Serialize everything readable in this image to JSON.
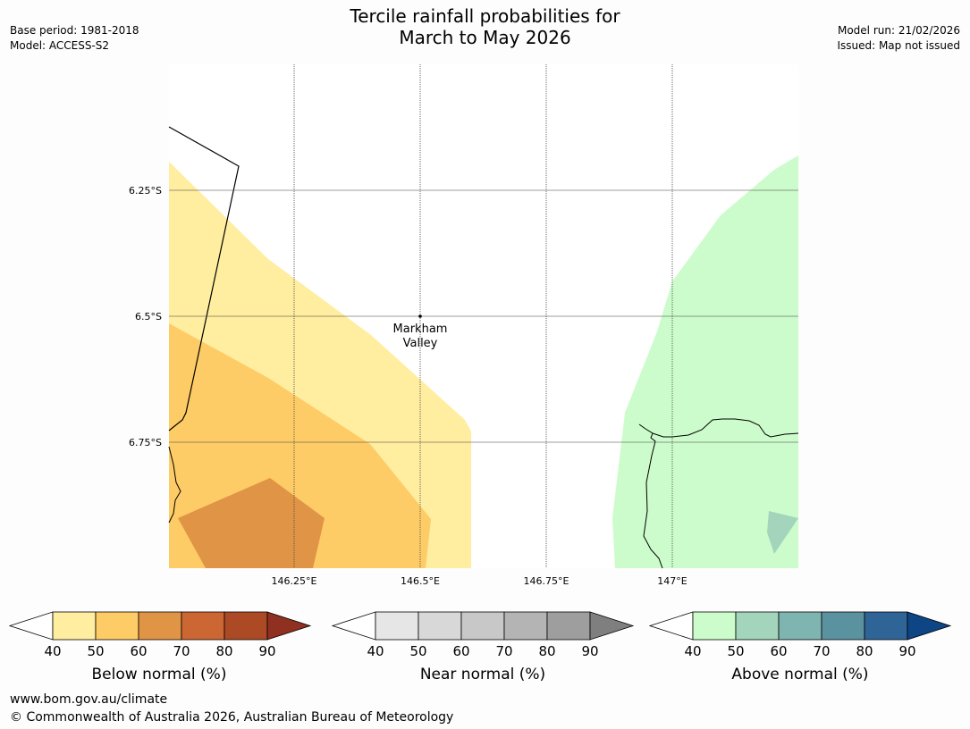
{
  "title_line1": "Tercile rainfall probabilities for",
  "title_line2": "March to May 2026",
  "base_period": "Base period: 1981-2018",
  "model": "Model: ACCESS-S2",
  "model_run": "Model run: 21/02/2026",
  "issued": "Issued: Map not issued",
  "map": {
    "lat_labels": [
      "6.25°S",
      "6.5°S",
      "6.75°S"
    ],
    "lon_labels": [
      "146.25°E",
      "146.5°E",
      "146.75°E",
      "147°E"
    ],
    "place": {
      "name_line1": "Markham",
      "name_line2": "Valley"
    },
    "colors": {
      "below_40": "#ffeda0",
      "below_50": "#fecc66",
      "below_60": "#e09445",
      "above_40": "#ccfccb",
      "above_50": "#a3d5bc"
    }
  },
  "legends": [
    {
      "title": "Below normal (%)",
      "ticks": [
        "40",
        "50",
        "60",
        "70",
        "80",
        "90"
      ],
      "colors": [
        "#ffffff",
        "#ffeda0",
        "#fecc66",
        "#e09445",
        "#cc6633",
        "#ad4a26",
        "#8f3020"
      ]
    },
    {
      "title": "Near normal (%)",
      "ticks": [
        "40",
        "50",
        "60",
        "70",
        "80",
        "90"
      ],
      "colors": [
        "#ffffff",
        "#e6e6e6",
        "#d8d8d8",
        "#c8c8c8",
        "#b4b4b4",
        "#9e9e9e",
        "#7f7f7f"
      ]
    },
    {
      "title": "Above normal (%)",
      "ticks": [
        "40",
        "50",
        "60",
        "70",
        "80",
        "90"
      ],
      "colors": [
        "#ffffff",
        "#ccfccb",
        "#a3d5bc",
        "#7fb5b0",
        "#5a92a0",
        "#2f6496",
        "#0d4585"
      ]
    }
  ],
  "footer_url": "www.bom.gov.au/climate",
  "footer_copyright": "© Commonwealth of Australia 2026, Australian Bureau of Meteorology"
}
